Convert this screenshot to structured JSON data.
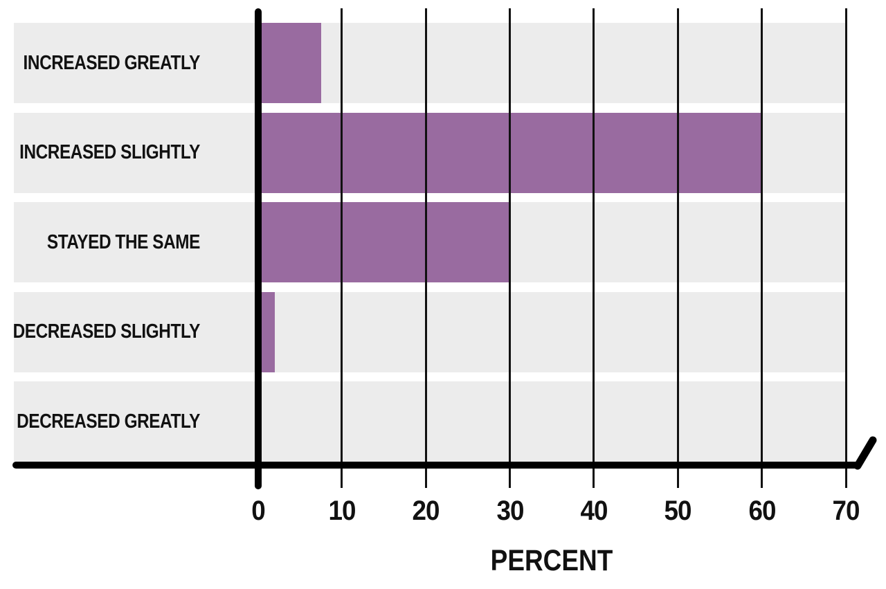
{
  "chart_data": {
    "type": "bar",
    "orientation": "horizontal",
    "title": "",
    "categories": [
      "INCREASED GREATLY",
      "INCREASED SLIGHTLY",
      "STAYED THE SAME",
      "DECREASED SLIGHTLY",
      "DECREASED GREATLY"
    ],
    "values": [
      7.5,
      60,
      30,
      2,
      0
    ],
    "xlabel": "PERCENT",
    "xlim": [
      0,
      70
    ],
    "xticks": [
      0,
      10,
      20,
      30,
      40,
      50,
      60,
      70
    ],
    "xtick_labels": [
      "0",
      "10",
      "20",
      "30",
      "40",
      "50",
      "60",
      "70"
    ],
    "grid": true,
    "legend": false,
    "axis_break_mark": true,
    "colors": {
      "bar": "#996ba0",
      "band": "#ececec",
      "axis": "#000000",
      "gridline": "#111111",
      "background": "#ffffff",
      "text": "#111111"
    }
  }
}
